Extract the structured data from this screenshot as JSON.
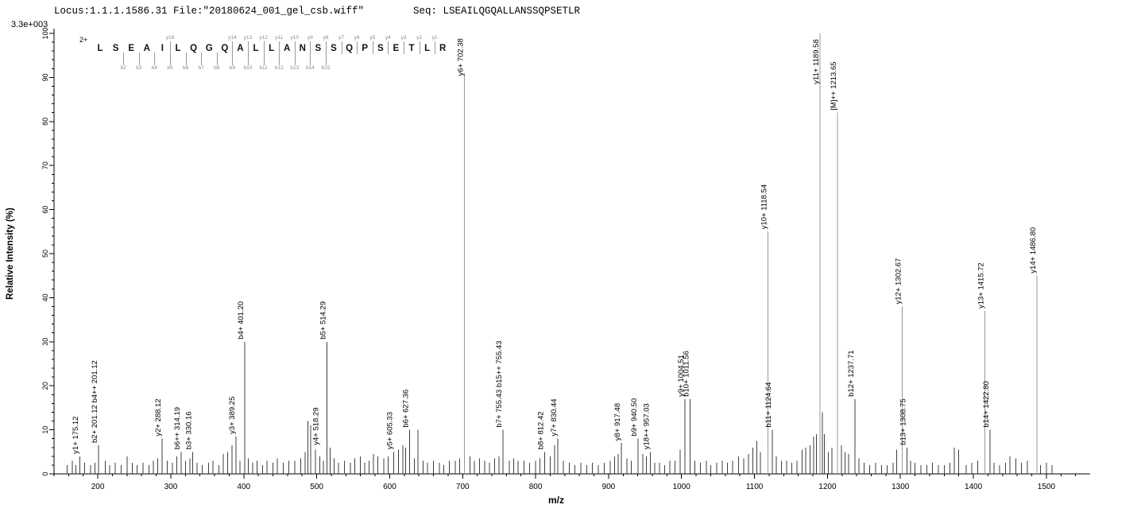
{
  "header": {
    "locus_text": "Locus:1.1.1.1586.31 File:\"20180624_001_gel_csb.wiff\"",
    "seq_text": "Seq: LSEAILQGQALLANSSQPSETLR"
  },
  "sequence_panel": {
    "charge_label": "2+",
    "residues": [
      "L",
      "S",
      "E",
      "A",
      "I",
      "L",
      "Q",
      "G",
      "Q",
      "A",
      "L",
      "L",
      "A",
      "N",
      "S",
      "S",
      "Q",
      "P",
      "S",
      "E",
      "T",
      "L",
      "R"
    ],
    "fragments": [
      {
        "type": "y",
        "label": "y18",
        "boundary": 5
      },
      {
        "type": "y",
        "label": "y14",
        "boundary": 9
      },
      {
        "type": "y",
        "label": "y13",
        "boundary": 10
      },
      {
        "type": "y",
        "label": "y12",
        "boundary": 11
      },
      {
        "type": "y",
        "label": "y11",
        "boundary": 12
      },
      {
        "type": "y",
        "label": "y10",
        "boundary": 13
      },
      {
        "type": "y",
        "label": "y9",
        "boundary": 14
      },
      {
        "type": "y",
        "label": "y8",
        "boundary": 15
      },
      {
        "type": "y",
        "label": "y7",
        "boundary": 16
      },
      {
        "type": "y",
        "label": "y6",
        "boundary": 17
      },
      {
        "type": "y",
        "label": "y5",
        "boundary": 18
      },
      {
        "type": "y",
        "label": "y4",
        "boundary": 19
      },
      {
        "type": "y",
        "label": "y3",
        "boundary": 20
      },
      {
        "type": "y",
        "label": "y2",
        "boundary": 21
      },
      {
        "type": "y",
        "label": "y1",
        "boundary": 22
      },
      {
        "type": "b",
        "label": "b2",
        "boundary": 2
      },
      {
        "type": "b",
        "label": "b3",
        "boundary": 3
      },
      {
        "type": "b",
        "label": "b4",
        "boundary": 4
      },
      {
        "type": "b",
        "label": "b5",
        "boundary": 5
      },
      {
        "type": "b",
        "label": "b6",
        "boundary": 6
      },
      {
        "type": "b",
        "label": "b7",
        "boundary": 7
      },
      {
        "type": "b",
        "label": "b8",
        "boundary": 8
      },
      {
        "type": "b",
        "label": "b9",
        "boundary": 9
      },
      {
        "type": "b",
        "label": "b10",
        "boundary": 10
      },
      {
        "type": "b",
        "label": "b11",
        "boundary": 11
      },
      {
        "type": "b",
        "label": "b12",
        "boundary": 12
      },
      {
        "type": "b",
        "label": "b13",
        "boundary": 13
      },
      {
        "type": "b",
        "label": "b14",
        "boundary": 14
      },
      {
        "type": "b",
        "label": "b15",
        "boundary": 15
      }
    ]
  },
  "chart_data": {
    "type": "stick",
    "xlabel": "m/z",
    "ylabel": "Relative Intensity (%)",
    "base_peak_intensity_label": "3.3e+003",
    "xlim": [
      140,
      1560
    ],
    "ylim": [
      0,
      100
    ],
    "x_major_ticks": [
      200,
      300,
      400,
      500,
      600,
      700,
      800,
      900,
      1000,
      1100,
      1200,
      1300,
      1400,
      1500
    ],
    "x_minor_step": 20,
    "y_major_ticks": [
      0,
      10,
      20,
      30,
      40,
      50,
      60,
      70,
      80,
      90,
      100
    ],
    "y_minor_step": 2,
    "labeled_peaks": [
      {
        "mz": 175.12,
        "intensity": 4,
        "label": "y1+ 175.12"
      },
      {
        "mz": 201.12,
        "intensity": 6.5,
        "label": "b2+ 201.12  b4++ 201.12"
      },
      {
        "mz": 288.12,
        "intensity": 8,
        "label": "y2+ 288.12"
      },
      {
        "mz": 314.19,
        "intensity": 5,
        "label": "b6++ 314.19"
      },
      {
        "mz": 330.16,
        "intensity": 5,
        "label": "b3+ 330.16"
      },
      {
        "mz": 389.25,
        "intensity": 8.5,
        "label": "y3+ 389.25"
      },
      {
        "mz": 401.2,
        "intensity": 30,
        "label": "b4+ 401.20"
      },
      {
        "mz": 514.29,
        "intensity": 30,
        "label": "b5+ 514.29"
      },
      {
        "mz": 518.29,
        "intensity": 6,
        "label": "y4+ 518.29",
        "dx": -13
      },
      {
        "mz": 605.33,
        "intensity": 5,
        "label": "y5+ 605.33"
      },
      {
        "mz": 627.36,
        "intensity": 10,
        "label": "b6+ 627.36"
      },
      {
        "mz": 702.38,
        "intensity": 91,
        "label": "y6+ 702.38"
      },
      {
        "mz": 755.43,
        "intensity": 10,
        "label": "b7+ 755.43  b15++ 755.43"
      },
      {
        "mz": 812.42,
        "intensity": 5,
        "label": "b8+ 812.42"
      },
      {
        "mz": 830.44,
        "intensity": 8,
        "label": "y7+ 830.44"
      },
      {
        "mz": 917.48,
        "intensity": 7,
        "label": "y8+ 917.48"
      },
      {
        "mz": 940.5,
        "intensity": 8,
        "label": "b9+ 940.50"
      },
      {
        "mz": 957.03,
        "intensity": 5,
        "label": "y18++ 957.03"
      },
      {
        "mz": 1004.51,
        "intensity": 17,
        "label": "y9+ 1004.51"
      },
      {
        "mz": 1011.56,
        "intensity": 17,
        "label": "b10+ 1011.56"
      },
      {
        "mz": 1118.54,
        "intensity": 55,
        "label": "y10+ 1118.54"
      },
      {
        "mz": 1124.64,
        "intensity": 10,
        "label": "b11+ 1124.64"
      },
      {
        "mz": 1189.58,
        "intensity": 100,
        "label": "y11+ 1189.58"
      },
      {
        "mz": 1213.65,
        "intensity": 82,
        "label": "[M]++ 1213.65"
      },
      {
        "mz": 1237.71,
        "intensity": 17,
        "label": "b12+ 1237.71"
      },
      {
        "mz": 1302.67,
        "intensity": 38,
        "label": "y12+ 1302.67"
      },
      {
        "mz": 1308.75,
        "intensity": 6,
        "label": "b13+ 1308.75"
      },
      {
        "mz": 1415.72,
        "intensity": 37,
        "label": "y13+ 1415.72"
      },
      {
        "mz": 1422.8,
        "intensity": 10,
        "label": "b14+ 1422.80"
      },
      {
        "mz": 1486.8,
        "intensity": 45,
        "label": "y14+ 1486.80"
      }
    ],
    "unlabeled_peaks": [
      [
        158,
        2
      ],
      [
        165,
        3
      ],
      [
        170,
        2
      ],
      [
        182,
        2.5
      ],
      [
        190,
        2
      ],
      [
        196,
        2.5
      ],
      [
        210,
        3
      ],
      [
        216,
        2
      ],
      [
        224,
        2.5
      ],
      [
        232,
        2
      ],
      [
        240,
        4
      ],
      [
        247,
        2.5
      ],
      [
        254,
        2
      ],
      [
        262,
        2.5
      ],
      [
        270,
        2
      ],
      [
        276,
        3
      ],
      [
        282,
        3.5
      ],
      [
        295,
        3
      ],
      [
        302,
        2.5
      ],
      [
        308,
        4
      ],
      [
        320,
        3
      ],
      [
        326,
        3.5
      ],
      [
        336,
        2.5
      ],
      [
        343,
        2
      ],
      [
        352,
        2.5
      ],
      [
        358,
        3
      ],
      [
        366,
        2
      ],
      [
        372,
        4.5
      ],
      [
        378,
        5
      ],
      [
        384,
        6.5
      ],
      [
        395,
        3
      ],
      [
        406,
        3.5
      ],
      [
        412,
        2.5
      ],
      [
        418,
        3
      ],
      [
        426,
        2
      ],
      [
        432,
        3
      ],
      [
        440,
        2.5
      ],
      [
        446,
        3.5
      ],
      [
        454,
        2.5
      ],
      [
        462,
        3
      ],
      [
        470,
        3
      ],
      [
        478,
        3.5
      ],
      [
        484,
        5
      ],
      [
        488,
        12
      ],
      [
        492,
        11
      ],
      [
        498,
        5.5
      ],
      [
        504,
        4
      ],
      [
        509,
        3
      ],
      [
        524,
        3.5
      ],
      [
        530,
        2.5
      ],
      [
        538,
        3
      ],
      [
        546,
        2.5
      ],
      [
        552,
        3.5
      ],
      [
        560,
        4
      ],
      [
        566,
        2.5
      ],
      [
        572,
        3
      ],
      [
        578,
        4.5
      ],
      [
        584,
        4
      ],
      [
        592,
        3.5
      ],
      [
        598,
        4
      ],
      [
        612,
        5.5
      ],
      [
        618,
        6.5
      ],
      [
        622,
        6
      ],
      [
        634,
        3.5
      ],
      [
        639,
        10
      ],
      [
        646,
        3
      ],
      [
        652,
        2.5
      ],
      [
        660,
        3
      ],
      [
        668,
        2.5
      ],
      [
        674,
        2
      ],
      [
        682,
        3
      ],
      [
        690,
        3
      ],
      [
        696,
        3.5
      ],
      [
        710,
        4
      ],
      [
        716,
        3
      ],
      [
        723,
        3.5
      ],
      [
        730,
        3
      ],
      [
        737,
        2.5
      ],
      [
        744,
        3.5
      ],
      [
        750,
        4
      ],
      [
        764,
        3
      ],
      [
        770,
        3.5
      ],
      [
        776,
        3
      ],
      [
        784,
        3
      ],
      [
        792,
        2.5
      ],
      [
        800,
        3
      ],
      [
        806,
        3.5
      ],
      [
        820,
        4
      ],
      [
        826,
        6.5
      ],
      [
        838,
        3
      ],
      [
        846,
        2.5
      ],
      [
        854,
        2
      ],
      [
        862,
        2.5
      ],
      [
        870,
        2
      ],
      [
        878,
        2.5
      ],
      [
        886,
        2
      ],
      [
        894,
        2.5
      ],
      [
        902,
        3
      ],
      [
        908,
        4
      ],
      [
        913,
        4.5
      ],
      [
        925,
        3.5
      ],
      [
        931,
        3
      ],
      [
        947,
        4.5
      ],
      [
        952,
        4
      ],
      [
        963,
        2.5
      ],
      [
        970,
        2.5
      ],
      [
        977,
        2
      ],
      [
        984,
        3
      ],
      [
        991,
        3
      ],
      [
        998,
        5.5
      ],
      [
        1018,
        3
      ],
      [
        1026,
        2.5
      ],
      [
        1034,
        3
      ],
      [
        1040,
        2
      ],
      [
        1048,
        2.5
      ],
      [
        1056,
        3
      ],
      [
        1063,
        2.5
      ],
      [
        1070,
        3
      ],
      [
        1078,
        4
      ],
      [
        1085,
        3.5
      ],
      [
        1092,
        4.5
      ],
      [
        1098,
        6
      ],
      [
        1103,
        7.5
      ],
      [
        1108,
        5
      ],
      [
        1130,
        4
      ],
      [
        1137,
        3
      ],
      [
        1144,
        3
      ],
      [
        1151,
        2.5
      ],
      [
        1158,
        3
      ],
      [
        1165,
        5.5
      ],
      [
        1170,
        6
      ],
      [
        1176,
        6.5
      ],
      [
        1181,
        8.5
      ],
      [
        1185,
        9
      ],
      [
        1193,
        14
      ],
      [
        1196,
        9
      ],
      [
        1201,
        5
      ],
      [
        1206,
        6
      ],
      [
        1219,
        6.5
      ],
      [
        1224,
        5
      ],
      [
        1229,
        4.5
      ],
      [
        1243,
        3.5
      ],
      [
        1250,
        2.5
      ],
      [
        1258,
        2
      ],
      [
        1266,
        2.5
      ],
      [
        1274,
        2
      ],
      [
        1282,
        2
      ],
      [
        1290,
        2.5
      ],
      [
        1295,
        5.5
      ],
      [
        1314,
        3
      ],
      [
        1320,
        2.5
      ],
      [
        1328,
        2
      ],
      [
        1336,
        2
      ],
      [
        1344,
        2.5
      ],
      [
        1352,
        2
      ],
      [
        1360,
        2
      ],
      [
        1368,
        2.5
      ],
      [
        1374,
        6
      ],
      [
        1380,
        5.5
      ],
      [
        1390,
        2
      ],
      [
        1398,
        2.5
      ],
      [
        1406,
        3
      ],
      [
        1428,
        2.5
      ],
      [
        1436,
        2
      ],
      [
        1444,
        2.5
      ],
      [
        1450,
        4
      ],
      [
        1458,
        3.5
      ],
      [
        1466,
        2.5
      ],
      [
        1474,
        3
      ],
      [
        1492,
        2
      ],
      [
        1500,
        2.5
      ],
      [
        1508,
        2
      ]
    ]
  }
}
